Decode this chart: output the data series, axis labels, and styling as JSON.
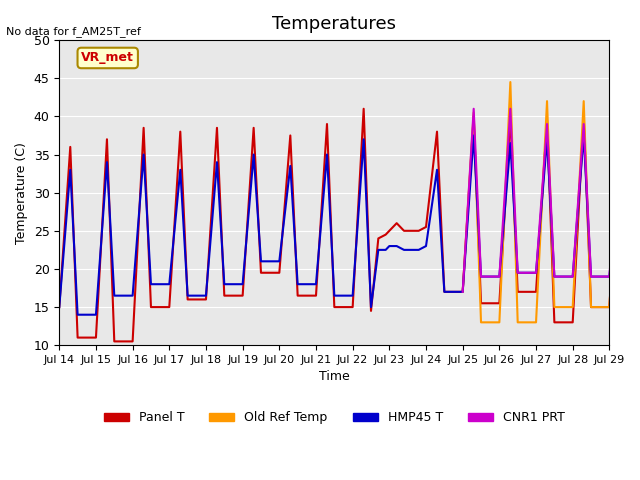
{
  "title": "Temperatures",
  "xlabel": "Time",
  "ylabel": "Temperature (C)",
  "ylim": [
    10,
    50
  ],
  "no_data_text": "No data for f_AM25T_ref",
  "annotation_text": "VR_met",
  "background_color": "#e8e8e8",
  "legend_entries": [
    "Panel T",
    "Old Ref Temp",
    "HMP45 T",
    "CNR1 PRT"
  ],
  "legend_colors": [
    "#cc0000",
    "#ff9900",
    "#0000cc",
    "#cc00cc"
  ],
  "xtick_labels": [
    "Jul 14",
    "Jul 15",
    "Jul 16",
    "Jul 17",
    "Jul 18",
    "Jul 19",
    "Jul 20",
    "Jul 21",
    "Jul 22",
    "Jul 23",
    "Jul 24",
    "Jul 25",
    "Jul 26",
    "Jul 27",
    "Jul 28",
    "Jul 29"
  ],
  "panel_t": {
    "x": [
      0,
      0.3,
      0.5,
      1,
      1.3,
      1.5,
      2,
      2.3,
      2.5,
      3,
      3.3,
      3.5,
      4,
      4.3,
      4.5,
      5,
      5.3,
      5.5,
      6,
      6.3,
      6.5,
      7,
      7.3,
      7.5,
      8,
      8.3,
      8.5,
      8.7,
      8.9,
      9,
      9.2,
      9.4,
      9.5,
      9.6,
      9.7,
      9.8,
      10,
      10.3,
      10.5,
      11,
      11.3,
      11.5,
      12,
      12.3,
      12.5,
      13,
      13.3,
      13.5,
      14,
      14.3,
      14.5,
      15,
      15.3
    ],
    "y": [
      15,
      36,
      11,
      11,
      37,
      10.5,
      10.5,
      38.5,
      15,
      15,
      38,
      16,
      16,
      38.5,
      16.5,
      16.5,
      38.5,
      19.5,
      19.5,
      37.5,
      16.5,
      16.5,
      39,
      15,
      15,
      41,
      14.5,
      24,
      24.5,
      25,
      26,
      25,
      25,
      25,
      25,
      25,
      25.5,
      38,
      17,
      17,
      40,
      15.5,
      15.5,
      40,
      17,
      17,
      39.5,
      13,
      13,
      40,
      15,
      15,
      39
    ]
  },
  "old_ref_t": {
    "x": [
      11,
      11.3,
      11.5,
      12,
      12.3,
      12.5,
      13,
      13.3,
      13.5,
      14,
      14.3,
      14.5,
      15,
      15.3
    ],
    "y": [
      17,
      40.5,
      13,
      13,
      44.5,
      13,
      13,
      42,
      15,
      15,
      42,
      15,
      15,
      39
    ]
  },
  "hmp45_t": {
    "x": [
      0,
      0.3,
      0.5,
      1,
      1.3,
      1.5,
      2,
      2.3,
      2.5,
      3,
      3.3,
      3.5,
      4,
      4.3,
      4.5,
      5,
      5.3,
      5.5,
      6,
      6.3,
      6.5,
      7,
      7.3,
      7.5,
      8,
      8.3,
      8.5,
      8.7,
      8.9,
      9,
      9.2,
      9.4,
      9.5,
      9.6,
      9.7,
      9.8,
      10,
      10.3,
      10.5,
      11,
      11.3,
      11.5,
      12,
      12.3,
      12.5,
      13,
      13.3,
      13.5,
      14,
      14.3,
      14.5,
      15,
      15.3
    ],
    "y": [
      15,
      33,
      14,
      14,
      34,
      16.5,
      16.5,
      35,
      18,
      18,
      33,
      16.5,
      16.5,
      34,
      18,
      18,
      35,
      21,
      21,
      33.5,
      18,
      18,
      35,
      16.5,
      16.5,
      37,
      15,
      22.5,
      22.5,
      23,
      23,
      22.5,
      22.5,
      22.5,
      22.5,
      22.5,
      23,
      33,
      17,
      17,
      37.5,
      19,
      19,
      36.5,
      19.5,
      19.5,
      37,
      19,
      19,
      37.5,
      19,
      19,
      34
    ]
  },
  "cnr1_prt": {
    "x": [
      11,
      11.3,
      11.5,
      12,
      12.3,
      12.5,
      13,
      13.3,
      13.5,
      14,
      14.3,
      14.5,
      15,
      15.3
    ],
    "y": [
      17,
      41,
      19,
      19,
      41,
      19.5,
      19.5,
      39,
      19,
      19,
      39,
      19,
      19,
      38.5
    ]
  }
}
